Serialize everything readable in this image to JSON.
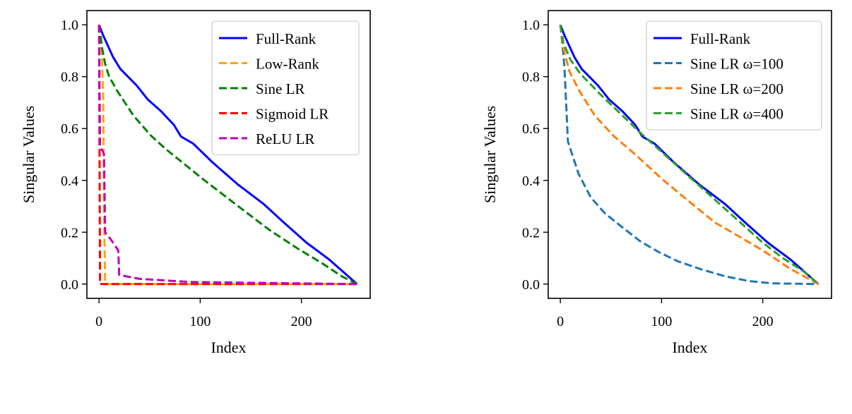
{
  "chart_data": [
    {
      "type": "line",
      "xlabel": "Index",
      "ylabel": "Singular Values",
      "xlim": [
        -12,
        268
      ],
      "ylim": [
        -0.055,
        1.055
      ],
      "xticks": [
        0,
        100,
        200
      ],
      "xtick_labels": [
        "0",
        "100",
        "200"
      ],
      "yticks": [
        0.0,
        0.2,
        0.4,
        0.6,
        0.8,
        1.0
      ],
      "ytick_labels": [
        "0.0",
        "0.2",
        "0.4",
        "0.6",
        "0.8",
        "1.0"
      ],
      "grid": false,
      "legend_position": "top-right",
      "series": [
        {
          "name": "Full-Rank",
          "color": "#0000ff",
          "style": "solid",
          "x": [
            0,
            4,
            14,
            21,
            37,
            48,
            61,
            74,
            81,
            93,
            112,
            137,
            163,
            182,
            205,
            228,
            255
          ],
          "y": [
            1.0,
            0.96,
            0.875,
            0.83,
            0.767,
            0.713,
            0.668,
            0.614,
            0.569,
            0.542,
            0.47,
            0.385,
            0.308,
            0.24,
            0.16,
            0.093,
            0.0
          ]
        },
        {
          "name": "Low-Rank",
          "color": "#ffa500",
          "style": "dashed",
          "x": [
            0,
            2,
            4,
            5,
            6,
            255
          ],
          "y": [
            1.0,
            0.95,
            0.75,
            0.3,
            0.0,
            0.0
          ]
        },
        {
          "name": "Sine LR",
          "color": "#008000",
          "style": "dashed",
          "x": [
            0,
            3,
            6,
            10,
            18,
            34,
            51,
            65,
            79,
            102,
            135,
            168,
            196,
            219,
            240,
            255
          ],
          "y": [
            1.0,
            0.91,
            0.85,
            0.8,
            0.745,
            0.65,
            0.574,
            0.524,
            0.48,
            0.407,
            0.308,
            0.21,
            0.138,
            0.084,
            0.03,
            0.0
          ]
        },
        {
          "name": "Sigmoid LR",
          "color": "#ff0000",
          "style": "dashed",
          "x": [
            0,
            0.5,
            1,
            255
          ],
          "y": [
            1.0,
            0.5,
            0.0,
            0.0
          ]
        },
        {
          "name": "ReLU LR",
          "color": "#bf00bf",
          "style": "dashed",
          "x": [
            0,
            1,
            4,
            5,
            6,
            12,
            19,
            20,
            40,
            90,
            255
          ],
          "y": [
            1.0,
            0.53,
            0.51,
            0.5,
            0.2,
            0.17,
            0.13,
            0.035,
            0.02,
            0.008,
            0.0
          ]
        }
      ]
    },
    {
      "type": "line",
      "xlabel": "Index",
      "ylabel": "Singular Values",
      "xlim": [
        -12,
        268
      ],
      "ylim": [
        -0.055,
        1.055
      ],
      "xticks": [
        0,
        100,
        200
      ],
      "xtick_labels": [
        "0",
        "100",
        "200"
      ],
      "yticks": [
        0.0,
        0.2,
        0.4,
        0.6,
        0.8,
        1.0
      ],
      "ytick_labels": [
        "0.0",
        "0.2",
        "0.4",
        "0.6",
        "0.8",
        "1.0"
      ],
      "grid": false,
      "legend_position": "top-right",
      "series": [
        {
          "name": "Full-Rank",
          "color": "#0000ff",
          "style": "solid",
          "x": [
            0,
            4,
            14,
            21,
            37,
            48,
            61,
            74,
            81,
            93,
            112,
            137,
            163,
            182,
            205,
            228,
            255
          ],
          "y": [
            1.0,
            0.96,
            0.875,
            0.83,
            0.767,
            0.713,
            0.668,
            0.614,
            0.569,
            0.542,
            0.47,
            0.385,
            0.308,
            0.24,
            0.16,
            0.093,
            0.0
          ]
        },
        {
          "name": "Sine LR ω=100",
          "color": "#1f77b4",
          "style": "dashed",
          "x": [
            0,
            1.6,
            4,
            7.5,
            18,
            30,
            44,
            60,
            79,
            97,
            116,
            139,
            163,
            186,
            209,
            255
          ],
          "y": [
            1.0,
            0.94,
            0.84,
            0.55,
            0.425,
            0.335,
            0.273,
            0.223,
            0.165,
            0.124,
            0.088,
            0.057,
            0.03,
            0.012,
            0.003,
            0.0
          ]
        },
        {
          "name": "Sine LR ω=200",
          "color": "#ff7f0e",
          "style": "dashed",
          "x": [
            0,
            3,
            9,
            18,
            34,
            53,
            74,
            100,
            125,
            153,
            177,
            200,
            228,
            255
          ],
          "y": [
            1.0,
            0.91,
            0.82,
            0.75,
            0.65,
            0.57,
            0.5,
            0.407,
            0.326,
            0.237,
            0.183,
            0.13,
            0.057,
            0.0
          ]
        },
        {
          "name": "Sine LR ω=400",
          "color": "#2ca02c",
          "style": "dashed",
          "x": [
            0,
            3,
            10,
            20,
            40,
            60,
            80,
            100,
            120,
            140,
            160,
            180,
            200,
            220,
            240,
            255
          ],
          "y": [
            1.0,
            0.93,
            0.865,
            0.81,
            0.73,
            0.655,
            0.58,
            0.51,
            0.44,
            0.37,
            0.3,
            0.23,
            0.16,
            0.1,
            0.05,
            0.0
          ]
        }
      ]
    }
  ]
}
